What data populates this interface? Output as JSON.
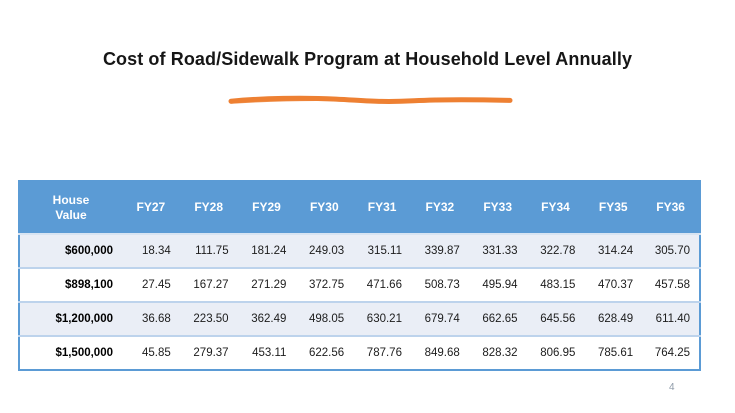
{
  "slide": {
    "title": "Cost of Road/Sidewalk Program at Household Level Annually",
    "page_number": "4",
    "accent_color": "#ED8033",
    "header_color": "#5B9BD5",
    "band_color": "#EAEEF6"
  },
  "table": {
    "header": [
      "House Value",
      "FY27",
      "FY28",
      "FY29",
      "FY30",
      "FY31",
      "FY32",
      "FY33",
      "FY34",
      "FY35",
      "FY36"
    ],
    "rows": [
      {
        "house_value": "$600,000",
        "values": [
          "18.34",
          "111.75",
          "181.24",
          "249.03",
          "315.11",
          "339.87",
          "331.33",
          "322.78",
          "314.24",
          "305.70"
        ]
      },
      {
        "house_value": "$898,100",
        "values": [
          "27.45",
          "167.27",
          "271.29",
          "372.75",
          "471.66",
          "508.73",
          "495.94",
          "483.15",
          "470.37",
          "457.58"
        ]
      },
      {
        "house_value": "$1,200,000",
        "values": [
          "36.68",
          "223.50",
          "362.49",
          "498.05",
          "630.21",
          "679.74",
          "662.65",
          "645.56",
          "628.49",
          "611.40"
        ]
      },
      {
        "house_value": "$1,500,000",
        "values": [
          "45.85",
          "279.37",
          "453.11",
          "622.56",
          "787.76",
          "849.68",
          "828.32",
          "806.95",
          "785.61",
          "764.25"
        ]
      }
    ]
  }
}
